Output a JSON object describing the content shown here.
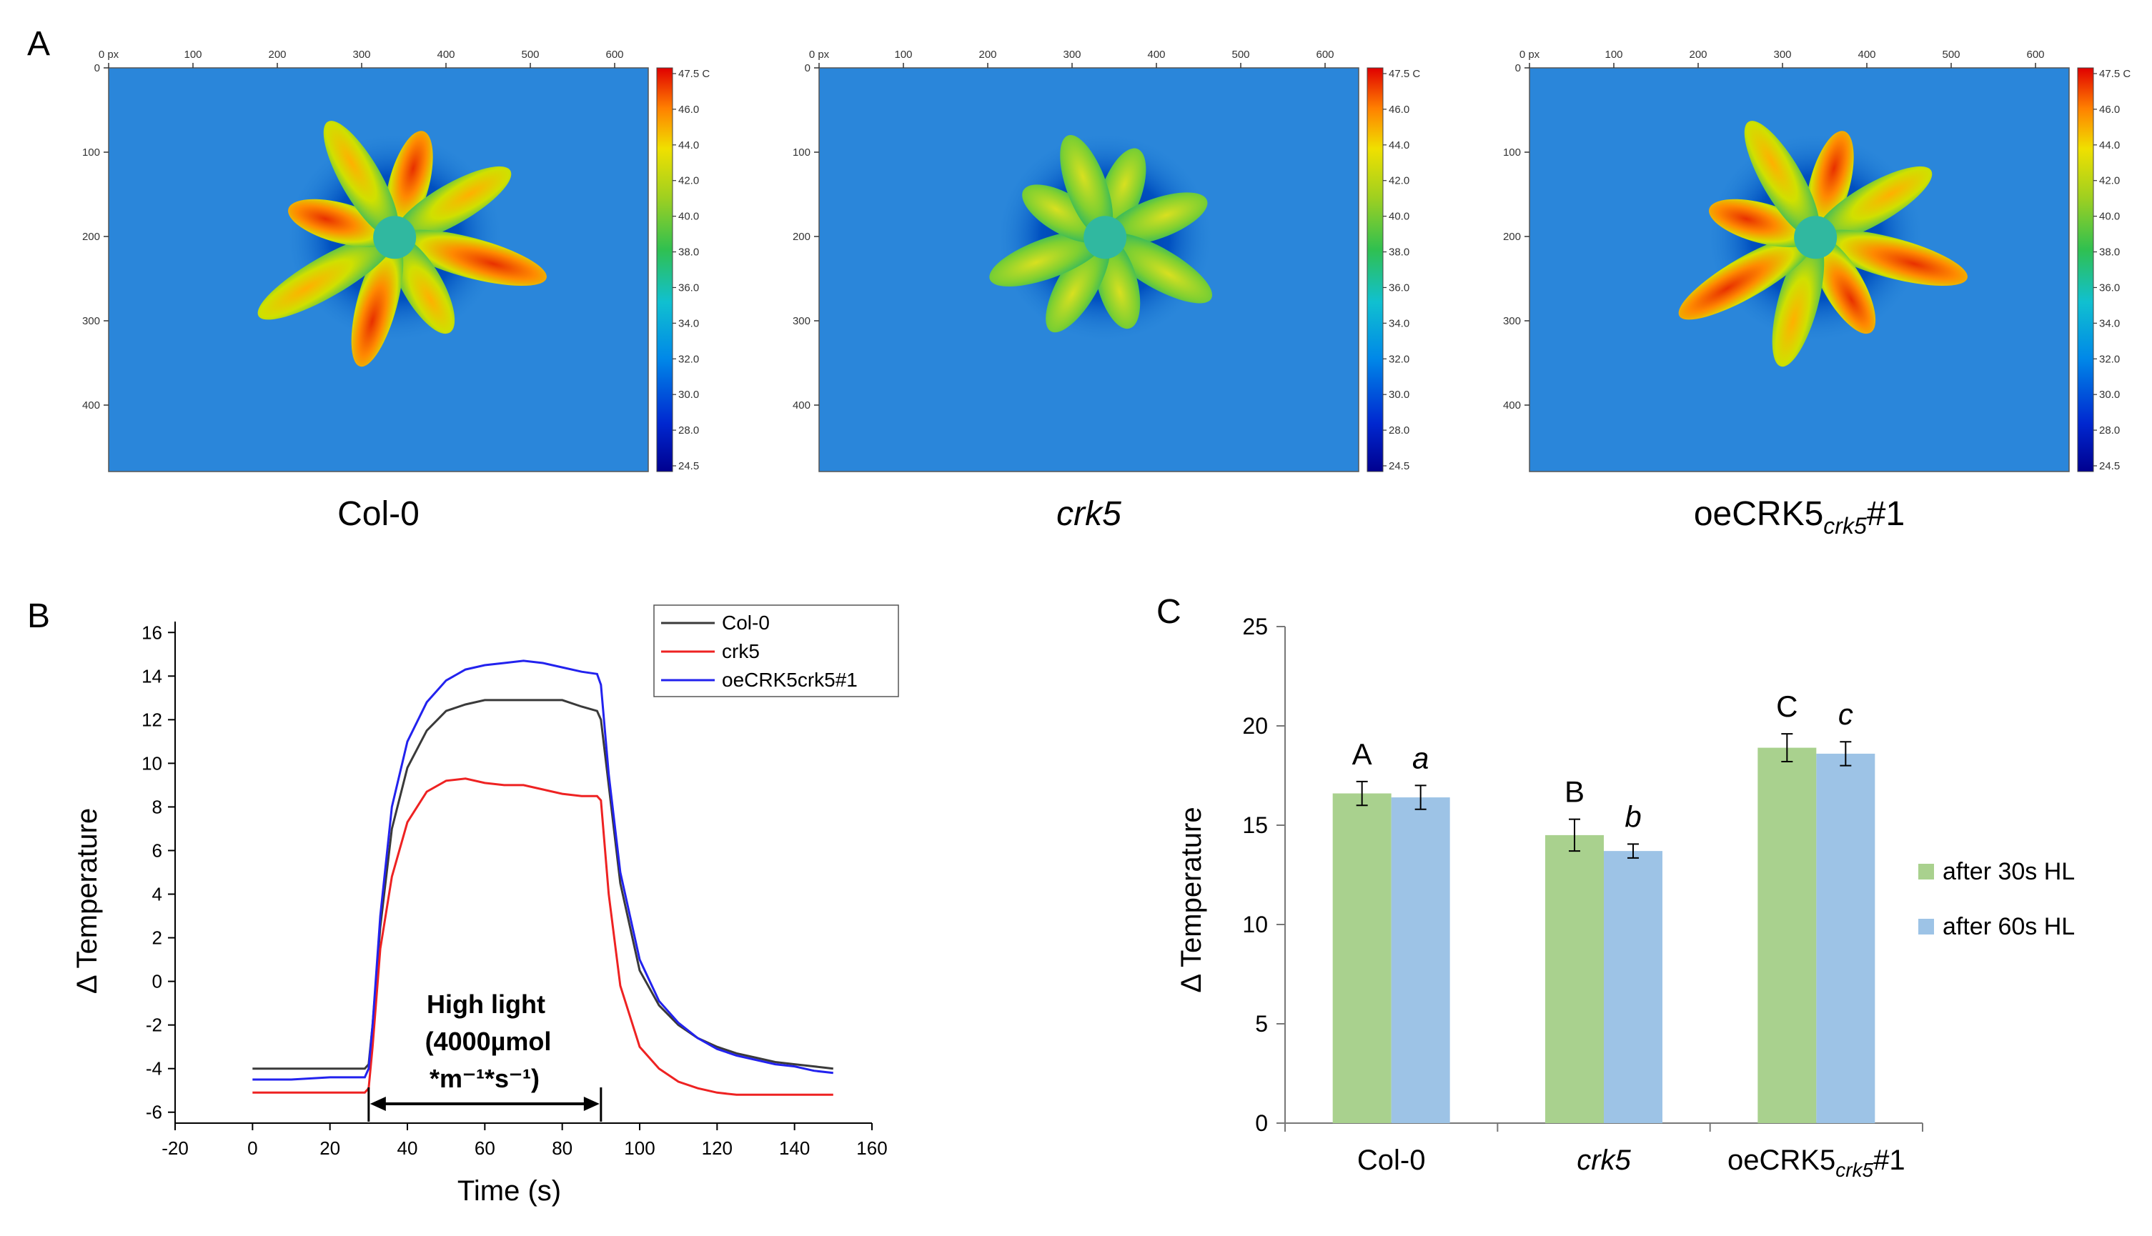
{
  "panels": {
    "A": {
      "label": "A",
      "x_ticks": [
        "0 px",
        "100",
        "200",
        "300",
        "400",
        "500",
        "600"
      ],
      "y_ticks": [
        "0",
        "100",
        "200",
        "300",
        "400"
      ],
      "colorbar_ticks": [
        "47.5 C",
        "46.0",
        "44.0",
        "42.0",
        "40.0",
        "38.0",
        "36.0",
        "34.0",
        "32.0",
        "30.0",
        "28.0",
        "24.5"
      ],
      "images": [
        {
          "caption": "Col-0"
        },
        {
          "caption": "crk5",
          "italic": true
        },
        {
          "caption_parts": [
            "oeCRK5",
            "crk5",
            "#1"
          ]
        }
      ]
    },
    "B": {
      "label": "B"
    },
    "C": {
      "label": "C"
    }
  },
  "chart_data": [
    {
      "panel": "B",
      "type": "line",
      "xlabel": "Time (s)",
      "ylabel": "Δ Temperature",
      "xlim": [
        -20,
        160
      ],
      "ylim": [
        -6.5,
        16.5
      ],
      "xticks": [
        -20,
        0,
        20,
        40,
        60,
        80,
        100,
        120,
        140,
        160
      ],
      "yticks": [
        -6,
        -4,
        -2,
        0,
        2,
        4,
        6,
        8,
        10,
        12,
        14,
        16
      ],
      "legend_position": "top-right",
      "annotation": {
        "lines": [
          "High light",
          "(4000µmol",
          "*m⁻¹*s⁻¹)"
        ],
        "bracket_x": [
          30,
          90
        ]
      },
      "series": [
        {
          "name": "Col-0",
          "color": "#3a3a3a",
          "x": [
            0,
            10,
            20,
            29,
            30,
            31,
            33,
            36,
            40,
            45,
            50,
            55,
            60,
            65,
            70,
            75,
            80,
            85,
            89,
            90,
            92,
            95,
            100,
            105,
            110,
            115,
            120,
            125,
            130,
            135,
            140,
            145,
            150
          ],
          "y": [
            -4.0,
            -4.0,
            -4.0,
            -4.0,
            -3.8,
            -2.0,
            2.5,
            7.0,
            9.8,
            11.5,
            12.4,
            12.7,
            12.9,
            12.9,
            12.9,
            12.9,
            12.9,
            12.6,
            12.4,
            12.0,
            9.0,
            4.5,
            0.5,
            -1.1,
            -2.0,
            -2.6,
            -3.0,
            -3.3,
            -3.5,
            -3.7,
            -3.8,
            -3.9,
            -4.0
          ]
        },
        {
          "name": "crk5",
          "color": "#ee2222",
          "x": [
            0,
            10,
            20,
            29,
            30,
            31,
            33,
            36,
            40,
            45,
            50,
            55,
            60,
            65,
            70,
            75,
            80,
            85,
            89,
            90,
            92,
            95,
            100,
            105,
            110,
            115,
            120,
            125,
            130,
            135,
            140,
            145,
            150
          ],
          "y": [
            -5.1,
            -5.1,
            -5.1,
            -5.1,
            -4.9,
            -3.0,
            1.5,
            4.8,
            7.3,
            8.7,
            9.2,
            9.3,
            9.1,
            9.0,
            9.0,
            8.8,
            8.6,
            8.5,
            8.5,
            8.3,
            4.0,
            -0.2,
            -3.0,
            -4.0,
            -4.6,
            -4.9,
            -5.1,
            -5.2,
            -5.2,
            -5.2,
            -5.2,
            -5.2,
            -5.2
          ]
        },
        {
          "name": "oeCRK5crk5#1",
          "color": "#2222ee",
          "x": [
            0,
            10,
            20,
            29,
            30,
            31,
            33,
            36,
            40,
            45,
            50,
            55,
            60,
            65,
            70,
            75,
            80,
            85,
            89,
            90,
            92,
            95,
            100,
            105,
            110,
            115,
            120,
            125,
            130,
            135,
            140,
            145,
            150
          ],
          "y": [
            -4.5,
            -4.5,
            -4.4,
            -4.4,
            -4.0,
            -2.0,
            3.0,
            8.0,
            11.0,
            12.8,
            13.8,
            14.3,
            14.5,
            14.6,
            14.7,
            14.6,
            14.4,
            14.2,
            14.1,
            13.6,
            9.5,
            5.0,
            1.0,
            -0.9,
            -1.9,
            -2.6,
            -3.1,
            -3.4,
            -3.6,
            -3.8,
            -3.9,
            -4.1,
            -4.2
          ]
        }
      ]
    },
    {
      "panel": "C",
      "type": "bar",
      "ylabel": "Δ Temperature",
      "ylim": [
        0,
        25
      ],
      "yticks": [
        0,
        5,
        10,
        15,
        20,
        25
      ],
      "legend_position": "right",
      "categories": [
        "Col-0",
        "crk5",
        "oeCRK5crk5#1"
      ],
      "category_labels": [
        {
          "parts": [
            "Col-0"
          ]
        },
        {
          "parts": [
            "crk5"
          ],
          "italic": true
        },
        {
          "parts": [
            "oeCRK5",
            "crk5",
            "#1"
          ]
        }
      ],
      "series": [
        {
          "name": "after 30s HL",
          "color": "#a9d18e",
          "values": [
            16.6,
            14.5,
            18.9
          ],
          "errors": [
            0.6,
            0.8,
            0.7
          ],
          "letters": [
            "A",
            "B",
            "C"
          ],
          "letters_italic": false
        },
        {
          "name": "after 60s HL",
          "color": "#9dc3e6",
          "values": [
            16.4,
            13.7,
            18.6
          ],
          "errors": [
            0.6,
            0.35,
            0.6
          ],
          "letters": [
            "a",
            "b",
            "c"
          ],
          "letters_italic": true
        }
      ]
    }
  ]
}
